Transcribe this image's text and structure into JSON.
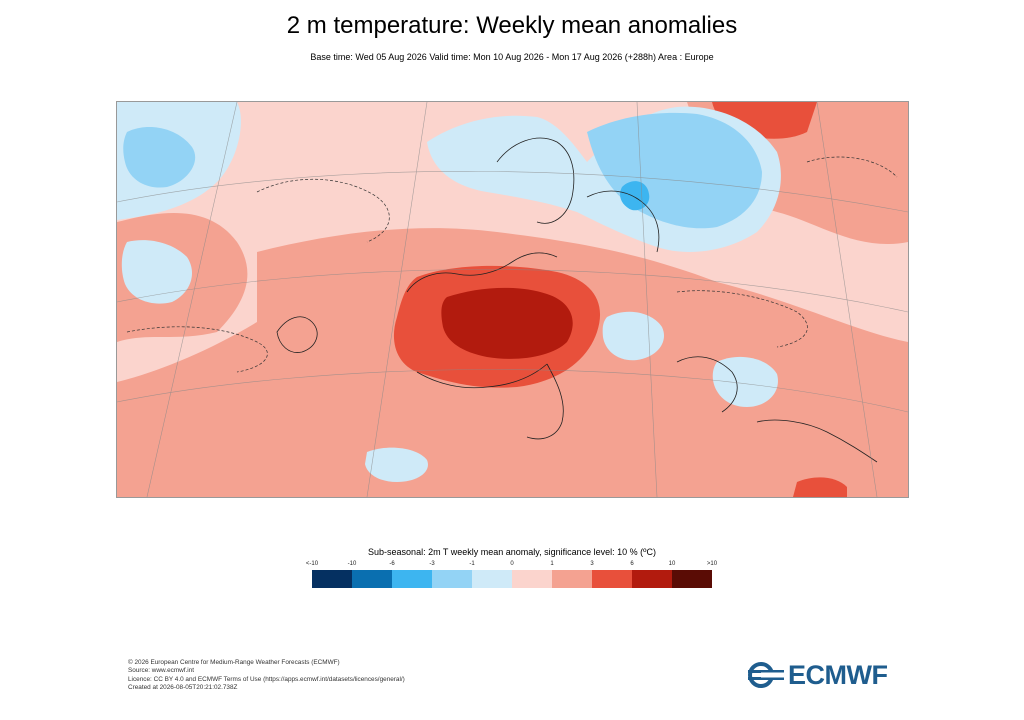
{
  "header": {
    "title": "2 m temperature: Weekly mean anomalies",
    "subtitle": "Base time: Wed 05 Aug 2026 Valid time: Mon 10 Aug 2026 - Mon 17 Aug 2026 (+288h) Area : Europe"
  },
  "map": {
    "region": "Europe",
    "colors": {
      "le_-10": "#053061",
      "-10_-6": "#0a6fb0",
      "-6_-3": "#3db5f0",
      "-3_-1": "#93d3f5",
      "-1_0": "#cfeaf8",
      "0_1": "#fbd4cd",
      "1_3": "#f4a291",
      "3_6": "#e8503b",
      "6_10": "#b21b0e",
      "gt_10": "#5a0c05"
    }
  },
  "legend": {
    "title": "Sub-seasonal: 2m T weekly mean anomaly, significance level: 10 % (ºC)",
    "ticks": [
      "<-10",
      "-10",
      "-6",
      "-3",
      "-1",
      "0",
      "1",
      "3",
      "6",
      "10",
      ">10"
    ],
    "colors": [
      "#053061",
      "#0a6fb0",
      "#3db5f0",
      "#93d3f5",
      "#cfeaf8",
      "#fbd4cd",
      "#f4a291",
      "#e8503b",
      "#b21b0e",
      "#5a0c05"
    ]
  },
  "footer": {
    "line1": "© 2026 European Centre for Medium-Range Weather Forecasts (ECMWF)",
    "line2": "Source: www.ecmwf.int",
    "line3": "Licence: CC BY 4.0 and ECMWF Terms of Use (https://apps.ecmwf.int/datasets/licences/general/)",
    "line4": "Created at 2026-08-05T20:21:02.738Z"
  },
  "logo": {
    "text": "ECMWF"
  }
}
